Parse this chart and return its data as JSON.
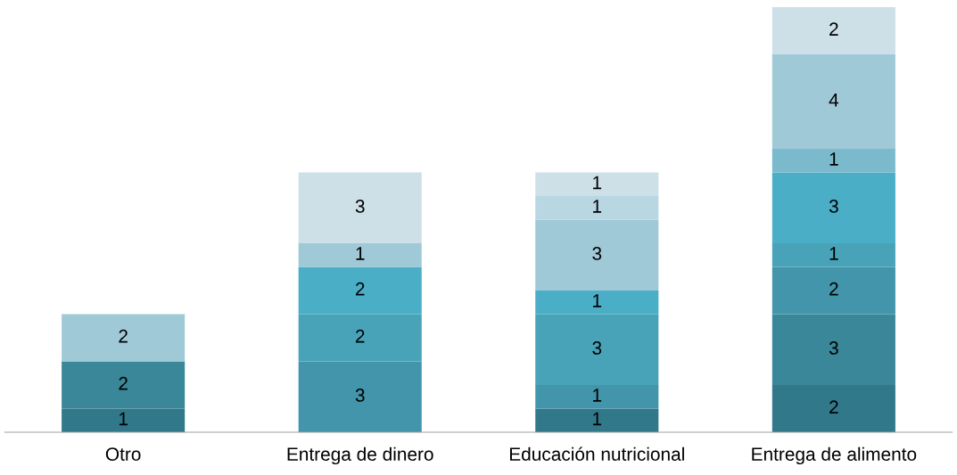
{
  "chart_data": {
    "type": "bar",
    "stacked": true,
    "data_labels": true,
    "grid": false,
    "legend": false,
    "categories": [
      "Otro",
      "Entrega de dinero",
      "Educación nutricional",
      "Entrega de alimento"
    ],
    "series": [
      {
        "color": "#31788a",
        "values": [
          1,
          null,
          1,
          2
        ]
      },
      {
        "color": "#3a8799",
        "values": [
          2,
          null,
          null,
          3
        ]
      },
      {
        "color": "#4295aa",
        "values": [
          null,
          3,
          1,
          2
        ]
      },
      {
        "color": "#48a3b9",
        "values": [
          null,
          2,
          3,
          1
        ]
      },
      {
        "color": "#4aaec7",
        "values": [
          null,
          2,
          1,
          3
        ]
      },
      {
        "color": "#7bbacd",
        "values": [
          null,
          null,
          null,
          1
        ]
      },
      {
        "color": "#a0c9d8",
        "values": [
          2,
          1,
          3,
          4
        ]
      },
      {
        "color": "#b8d7e2",
        "values": [
          null,
          null,
          1,
          null
        ]
      },
      {
        "color": "#cde0e8",
        "values": [
          null,
          3,
          1,
          2
        ]
      }
    ]
  }
}
